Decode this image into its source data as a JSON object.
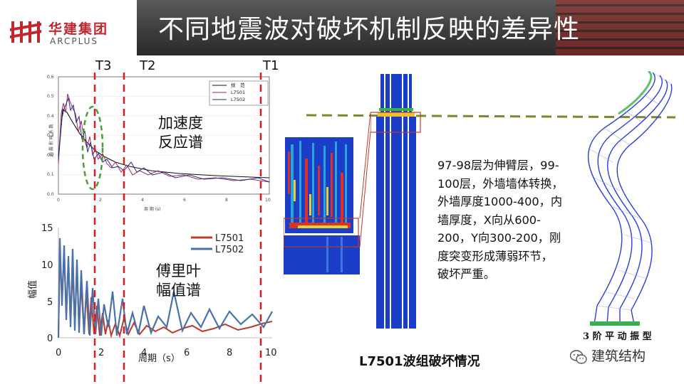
{
  "header": {
    "title": "不同地震波对破坏机制反映的差异性",
    "logo_cn": "华建集团",
    "logo_en": "ARCPLUS",
    "logo_icon": "arcplus-logo-icon"
  },
  "period_markers": [
    "T3",
    "T2",
    "T1"
  ],
  "acc_chart": {
    "label_line1": "加速度",
    "label_line2": "反应谱",
    "legend": [
      "规　范",
      "L7501",
      "L7502"
    ],
    "ylabel": "地 震 影 响 系 数",
    "xlabel": "周 期 (s)",
    "x_ticks": [
      "0",
      "2",
      "4",
      "6",
      "8",
      "10"
    ],
    "y_ticks": [
      "0.0",
      "0.1",
      "0.2",
      "0.3",
      "0.4",
      "0.5",
      "0.6"
    ]
  },
  "fourier_chart": {
    "label_line1": "傅里叶",
    "label_line2": "幅值谱",
    "legend": [
      "L7501",
      "L7502"
    ],
    "ylabel": "幅值",
    "xlabel": "周期（s）",
    "x_ticks": [
      "0",
      "2",
      "4",
      "6",
      "8",
      "10"
    ],
    "y_ticks": [
      "0",
      "5",
      "10",
      "15"
    ]
  },
  "description": "97-98层为伸臂层，99-100层，外墙墙体转换，外墙厚度1000-400，内墙厚度，X向从600-200，Y向300-200，刚度突变形成薄弱环节，破坏严重。",
  "captions": {
    "main": "L7501波组破坏情况",
    "mode": "3 阶 平 动 振 型"
  },
  "watermark": "建筑结构",
  "colors": {
    "l7501": "#c0392b",
    "l7502": "#4a72a8",
    "marker": "#d62020",
    "dash_green": "#5a8a2a"
  }
}
